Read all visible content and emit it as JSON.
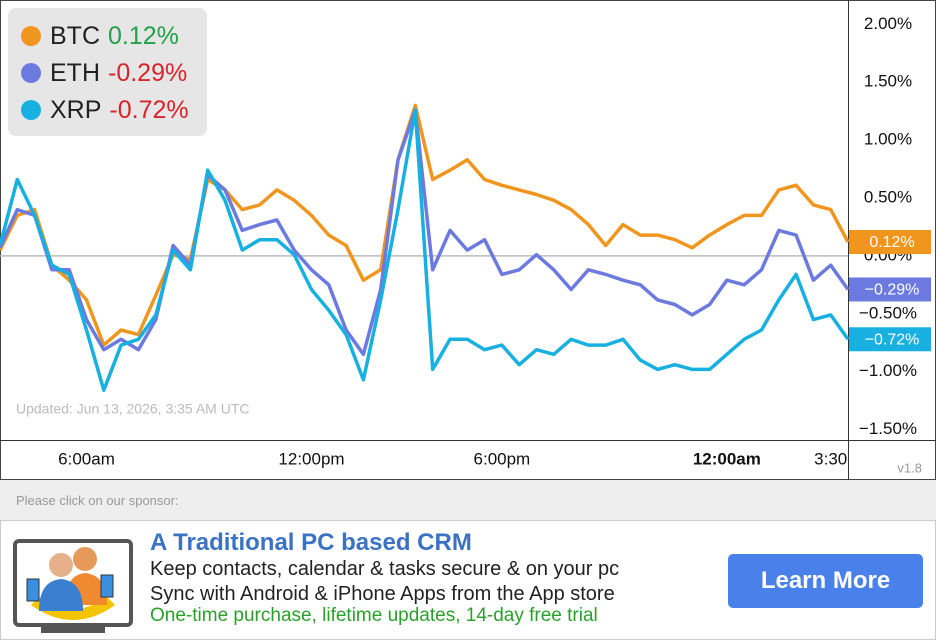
{
  "chart_data": {
    "type": "line",
    "categories": [
      null,
      null,
      null,
      null,
      null,
      "6:00am",
      null,
      null,
      null,
      null,
      null,
      null,
      null,
      null,
      null,
      null,
      null,
      null,
      "12:00pm",
      null,
      null,
      null,
      null,
      null,
      null,
      null,
      null,
      null,
      null,
      "6:00pm",
      null,
      null,
      null,
      null,
      null,
      null,
      null,
      null,
      null,
      null,
      null,
      null,
      "12:00am",
      null,
      null,
      null,
      null,
      null,
      "3:30",
      null
    ],
    "series": [
      {
        "name": "BTC",
        "color": "#f0961e",
        "change": {
          "value": 0.12,
          "label": "0.12%"
        },
        "last_label": "0.12%",
        "values": [
          0.05,
          0.35,
          0.4,
          -0.08,
          -0.21,
          -0.38,
          -0.77,
          -0.64,
          -0.68,
          -0.34,
          0.01,
          -0.03,
          0.66,
          0.57,
          0.4,
          0.44,
          0.57,
          0.48,
          0.35,
          0.18,
          0.09,
          -0.21,
          -0.12,
          0.83,
          1.3,
          0.66,
          0.74,
          0.83,
          0.66,
          0.61,
          0.57,
          0.53,
          0.48,
          0.4,
          0.27,
          0.09,
          0.27,
          0.18,
          0.18,
          0.14,
          0.07,
          0.18,
          0.27,
          0.35,
          0.35,
          0.57,
          0.61,
          0.44,
          0.4,
          0.12
        ]
      },
      {
        "name": "ETH",
        "color": "#6c7ae0",
        "change": {
          "value": -0.29,
          "label": "-0.29%"
        },
        "last_label": "−0.29%",
        "values": [
          0.07,
          0.4,
          0.35,
          -0.12,
          -0.12,
          -0.55,
          -0.81,
          -0.72,
          -0.81,
          -0.55,
          0.09,
          -0.08,
          0.7,
          0.57,
          0.22,
          0.27,
          0.31,
          0.05,
          -0.12,
          -0.25,
          -0.64,
          -0.85,
          -0.29,
          0.83,
          1.26,
          -0.12,
          0.22,
          0.05,
          0.14,
          -0.16,
          -0.12,
          0.01,
          -0.12,
          -0.29,
          -0.12,
          -0.16,
          -0.21,
          -0.25,
          -0.38,
          -0.42,
          -0.51,
          -0.42,
          -0.21,
          -0.25,
          -0.12,
          0.22,
          0.18,
          -0.21,
          -0.08,
          -0.29
        ]
      },
      {
        "name": "XRP",
        "color": "#17b0e0",
        "change": {
          "value": -0.72,
          "label": "-0.72%"
        },
        "last_label": "−0.72%",
        "values": [
          0.09,
          0.66,
          0.35,
          -0.08,
          -0.16,
          -0.64,
          -1.16,
          -0.77,
          -0.72,
          -0.51,
          0.05,
          -0.12,
          0.74,
          0.48,
          0.05,
          0.14,
          0.14,
          0.01,
          -0.29,
          -0.47,
          -0.68,
          -1.07,
          -0.38,
          0.4,
          1.26,
          -0.98,
          -0.72,
          -0.72,
          -0.81,
          -0.77,
          -0.94,
          -0.81,
          -0.85,
          -0.72,
          -0.77,
          -0.77,
          -0.72,
          -0.9,
          -0.98,
          -0.94,
          -0.98,
          -0.98,
          -0.85,
          -0.72,
          -0.64,
          -0.38,
          -0.16,
          -0.55,
          -0.51,
          -0.72
        ]
      }
    ],
    "ylim": [
      -1.59,
      2.21
    ],
    "yticks": [
      {
        "value": -1.5,
        "label": "−1.50%"
      },
      {
        "value": -1.0,
        "label": "−1.00%"
      },
      {
        "value": -0.5,
        "label": "−0.50%"
      },
      {
        "value": 0,
        "label": "0.00%"
      },
      {
        "value": 0.5,
        "label": "0.50%"
      },
      {
        "value": 1.0,
        "label": "1.00%"
      },
      {
        "value": 1.5,
        "label": "1.50%"
      },
      {
        "value": 2.0,
        "label": "2.00%"
      }
    ],
    "zero_line": true,
    "updated": "Updated: Jun 13, 2026, 3:35 AM UTC",
    "version": "v1.8"
  },
  "sponsor": {
    "prompt": "Please click on our sponsor:",
    "title": "A Traditional PC based CRM",
    "lines": [
      "Keep contacts, calendar & tasks secure & on your pc",
      "Sync with Android & iPhone Apps from the App store"
    ],
    "offer": "One-time purchase, lifetime updates, 14-day free trial",
    "button": "Learn More"
  }
}
